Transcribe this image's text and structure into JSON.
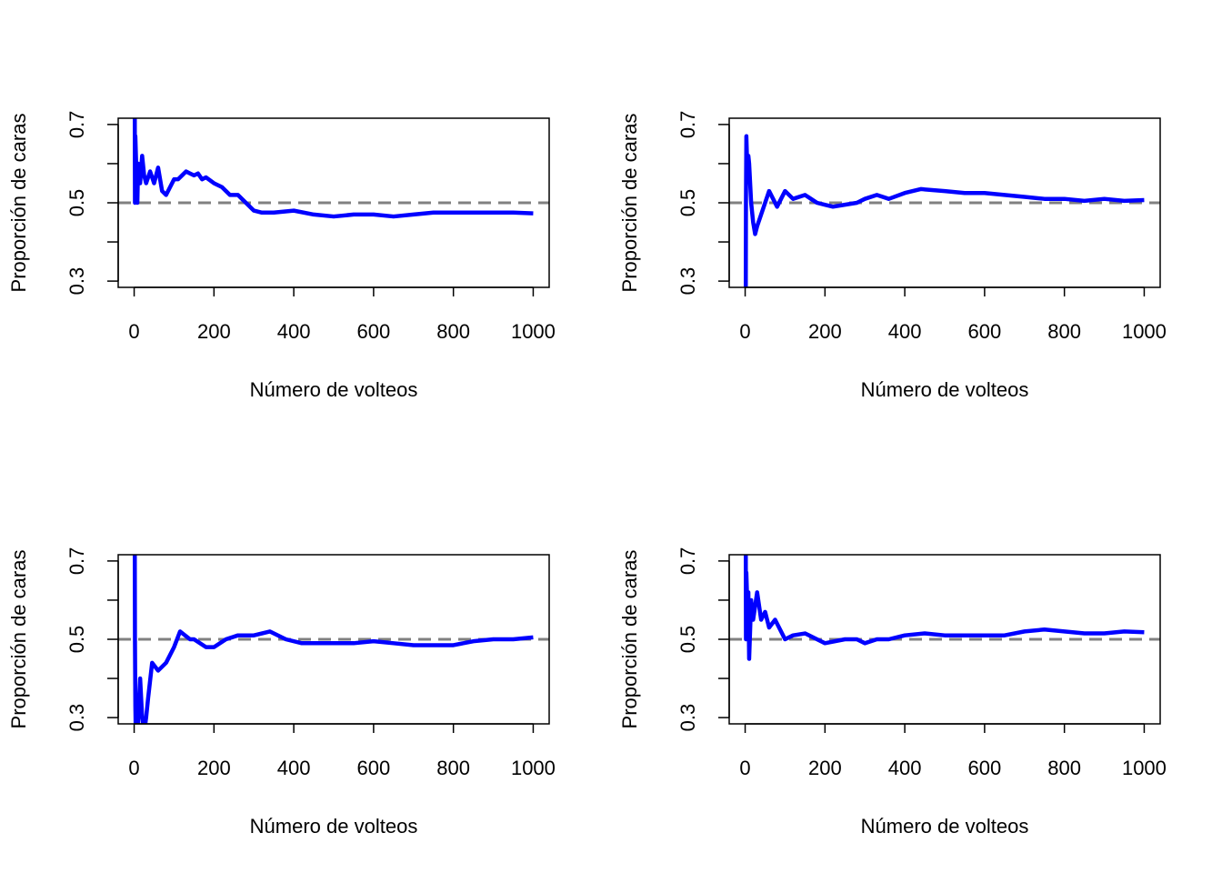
{
  "chart_data": [
    {
      "type": "line",
      "xlabel": "Número de volteos",
      "ylabel": "Proporción de caras",
      "xlim": [
        -40,
        1040
      ],
      "ylim": [
        0.284,
        0.716
      ],
      "xticks": [
        0,
        200,
        400,
        600,
        800,
        1000
      ],
      "yticks": [
        0.3,
        {
          "value": 0.4,
          "label": null
        },
        0.5,
        {
          "value": 0.6,
          "label": null
        },
        0.7
      ],
      "reference_line": {
        "value": 0.5,
        "color": "#808080",
        "dashed": true
      },
      "color": "#0000ff",
      "x": [
        1,
        2,
        3,
        5,
        8,
        10,
        15,
        20,
        25,
        30,
        40,
        50,
        60,
        70,
        80,
        90,
        100,
        110,
        120,
        130,
        140,
        150,
        160,
        170,
        180,
        200,
        220,
        240,
        260,
        280,
        300,
        320,
        350,
        400,
        450,
        500,
        550,
        600,
        650,
        700,
        750,
        800,
        850,
        900,
        950,
        1000
      ],
      "values": [
        1.0,
        0.5,
        0.67,
        0.6,
        0.5,
        0.6,
        0.55,
        0.62,
        0.57,
        0.55,
        0.58,
        0.55,
        0.59,
        0.53,
        0.52,
        0.54,
        0.56,
        0.56,
        0.57,
        0.58,
        0.575,
        0.57,
        0.575,
        0.56,
        0.565,
        0.55,
        0.54,
        0.52,
        0.52,
        0.5,
        0.48,
        0.475,
        0.475,
        0.48,
        0.47,
        0.465,
        0.47,
        0.47,
        0.465,
        0.47,
        0.475,
        0.475,
        0.475,
        0.475,
        0.475,
        0.473
      ]
    },
    {
      "type": "line",
      "xlabel": "Número de volteos",
      "ylabel": "Proporción de caras",
      "xlim": [
        -40,
        1040
      ],
      "ylim": [
        0.284,
        0.716
      ],
      "xticks": [
        0,
        200,
        400,
        600,
        800,
        1000
      ],
      "yticks": [
        0.3,
        {
          "value": 0.4,
          "label": null
        },
        0.5,
        {
          "value": 0.6,
          "label": null
        },
        0.7
      ],
      "reference_line": {
        "value": 0.5,
        "color": "#808080",
        "dashed": true
      },
      "color": "#0000ff",
      "x": [
        1,
        2,
        3,
        5,
        8,
        10,
        15,
        20,
        25,
        30,
        40,
        50,
        60,
        70,
        80,
        100,
        120,
        150,
        180,
        200,
        220,
        250,
        280,
        300,
        330,
        360,
        400,
        440,
        500,
        550,
        600,
        650,
        700,
        750,
        800,
        850,
        900,
        950,
        1000
      ],
      "values": [
        0,
        0.5,
        0.67,
        0.6,
        0.62,
        0.6,
        0.5,
        0.45,
        0.42,
        0.44,
        0.47,
        0.5,
        0.53,
        0.51,
        0.49,
        0.53,
        0.51,
        0.52,
        0.5,
        0.495,
        0.49,
        0.495,
        0.5,
        0.51,
        0.52,
        0.51,
        0.525,
        0.535,
        0.53,
        0.525,
        0.525,
        0.52,
        0.515,
        0.51,
        0.51,
        0.505,
        0.51,
        0.505,
        0.507
      ]
    },
    {
      "type": "line",
      "xlabel": "Número de volteos",
      "ylabel": "Proporción de caras",
      "xlim": [
        -40,
        1040
      ],
      "ylim": [
        0.284,
        0.716
      ],
      "xticks": [
        0,
        200,
        400,
        600,
        800,
        1000
      ],
      "yticks": [
        0.3,
        {
          "value": 0.4,
          "label": null
        },
        0.5,
        {
          "value": 0.6,
          "label": null
        },
        0.7
      ],
      "reference_line": {
        "value": 0.5,
        "color": "#808080",
        "dashed": true
      },
      "color": "#0000ff",
      "x": [
        1,
        2,
        3,
        5,
        8,
        10,
        15,
        20,
        25,
        30,
        35,
        45,
        60,
        80,
        100,
        115,
        140,
        150,
        180,
        200,
        230,
        260,
        300,
        340,
        380,
        420,
        450,
        500,
        550,
        600,
        650,
        700,
        750,
        800,
        850,
        900,
        950,
        1000
      ],
      "values": [
        1.0,
        0.5,
        0.33,
        0.2,
        0.25,
        0.3,
        0.4,
        0.3,
        0.26,
        0.3,
        0.35,
        0.44,
        0.42,
        0.44,
        0.48,
        0.52,
        0.5,
        0.5,
        0.48,
        0.48,
        0.5,
        0.51,
        0.51,
        0.52,
        0.5,
        0.49,
        0.49,
        0.49,
        0.49,
        0.495,
        0.49,
        0.485,
        0.485,
        0.485,
        0.495,
        0.5,
        0.5,
        0.505
      ]
    },
    {
      "type": "line",
      "xlabel": "Número de volteos",
      "ylabel": "Proporción de caras",
      "xlim": [
        -40,
        1040
      ],
      "ylim": [
        0.284,
        0.716
      ],
      "xticks": [
        0,
        200,
        400,
        600,
        800,
        1000
      ],
      "yticks": [
        0.3,
        {
          "value": 0.4,
          "label": null
        },
        0.5,
        {
          "value": 0.6,
          "label": null
        },
        0.7
      ],
      "reference_line": {
        "value": 0.5,
        "color": "#808080",
        "dashed": true
      },
      "color": "#0000ff",
      "x": [
        1,
        2,
        3,
        5,
        8,
        10,
        15,
        20,
        30,
        40,
        50,
        60,
        75,
        100,
        120,
        150,
        180,
        200,
        250,
        280,
        300,
        330,
        360,
        400,
        450,
        500,
        550,
        600,
        650,
        700,
        750,
        800,
        850,
        900,
        950,
        1000
      ],
      "values": [
        1.0,
        0.5,
        0.67,
        0.6,
        0.62,
        0.45,
        0.6,
        0.55,
        0.62,
        0.55,
        0.57,
        0.53,
        0.55,
        0.5,
        0.51,
        0.515,
        0.5,
        0.49,
        0.5,
        0.5,
        0.49,
        0.5,
        0.5,
        0.51,
        0.515,
        0.51,
        0.51,
        0.51,
        0.51,
        0.52,
        0.525,
        0.52,
        0.515,
        0.515,
        0.52,
        0.518
      ]
    }
  ]
}
